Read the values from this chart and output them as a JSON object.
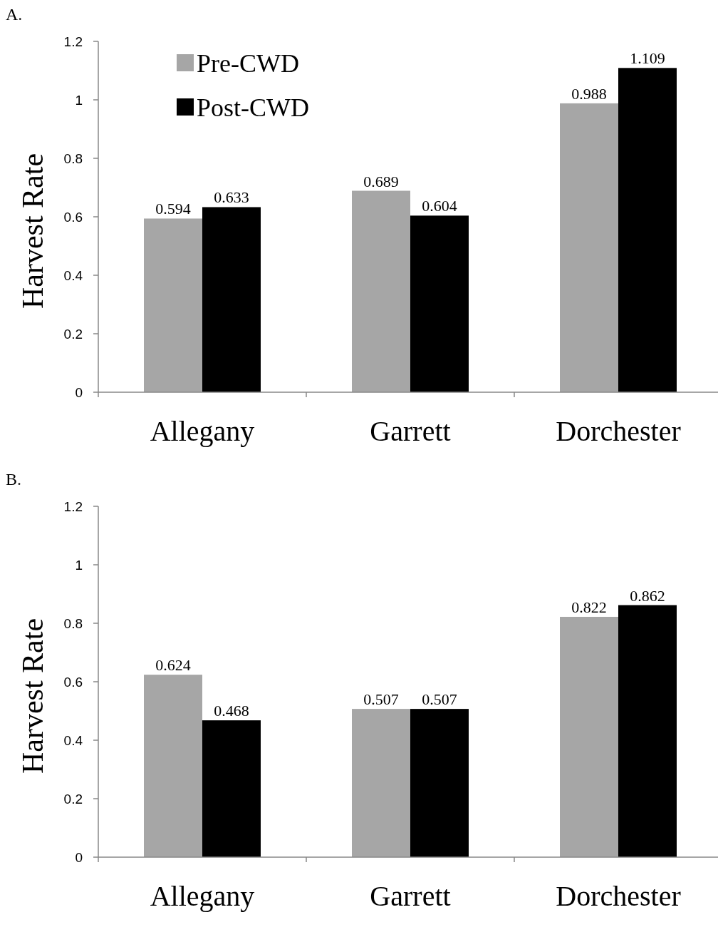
{
  "chart_data": [
    {
      "type": "bar",
      "title": "A.",
      "ylabel": "Harvest Rate",
      "categories": [
        "Allegany",
        "Garrett",
        "Dorchester"
      ],
      "series": [
        {
          "name": "Pre-CWD",
          "color": "#a6a6a6",
          "values": [
            0.594,
            0.689,
            0.988
          ]
        },
        {
          "name": "Post-CWD",
          "color": "#000000",
          "values": [
            0.633,
            0.604,
            1.109
          ]
        }
      ],
      "ylim": [
        0,
        1.2
      ],
      "yticks": [
        0,
        0.2,
        0.4,
        0.6,
        0.8,
        1,
        1.2
      ],
      "grid": false,
      "legend": "top left",
      "data_labels": true
    },
    {
      "type": "bar",
      "title": "B.",
      "ylabel": "Harvest Rate",
      "categories": [
        "Allegany",
        "Garrett",
        "Dorchester"
      ],
      "series": [
        {
          "color": "#a6a6a6",
          "values": [
            0.624,
            0.507,
            0.822
          ]
        },
        {
          "color": "#000000",
          "values": [
            0.468,
            0.507,
            0.862
          ]
        }
      ],
      "ylim": [
        0,
        1.2
      ],
      "yticks": [
        0,
        0.2,
        0.4,
        0.6,
        0.8,
        1,
        1.2
      ],
      "grid": false,
      "data_labels": true
    }
  ]
}
